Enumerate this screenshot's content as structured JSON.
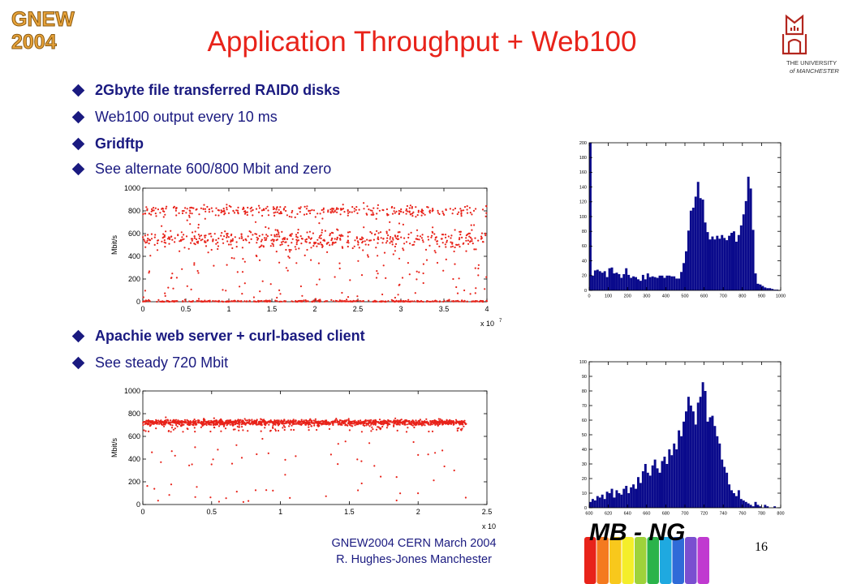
{
  "conference_logo": {
    "line1": "GNEW",
    "line2": "2004",
    "color": "#e8a33a"
  },
  "slide": {
    "title": "Application Throughput + Web100",
    "title_color": "#e8231a",
    "text_color": "#1a1a80",
    "number": "16"
  },
  "bullets_top": [
    {
      "text": "2Gbyte file transferred RAID0 disks",
      "bold": true
    },
    {
      "text": "Web100 output every 10 ms",
      "bold": false
    },
    {
      "text": "Gridftp",
      "bold": true
    },
    {
      "text": "See alternate 600/800 Mbit and zero",
      "bold": false
    }
  ],
  "bullets_bottom": [
    {
      "text": "Apachie web server + curl-based client",
      "bold": true
    },
    {
      "text": "See steady 720 Mbit",
      "bold": false
    }
  ],
  "footer": {
    "line1": "GNEW2004 CERN March 2004",
    "line2": "R. Hughes-Jones  Manchester"
  },
  "university_logo": {
    "line1": "THE UNIVERSITY",
    "line2": "of MANCHESTER",
    "color": "#b3261e"
  },
  "mbng_logo": {
    "text": "MB - NG",
    "stripe_colors": [
      "#e8231a",
      "#f47a1f",
      "#f8c81c",
      "#f4ee2a",
      "#9ed23a",
      "#2bb34a",
      "#1fa9e0",
      "#2f6bd8",
      "#7a4fd0",
      "#c03ad0"
    ]
  },
  "chart_data": [
    {
      "type": "scatter",
      "title": "",
      "xlabel": "",
      "ylabel": "Mbit/s",
      "xlim": [
        0,
        4
      ],
      "ylim": [
        0,
        1000
      ],
      "x_multiplier": "x 10^7",
      "xticks": [
        "0",
        "0.5",
        "1",
        "1.5",
        "2",
        "2.5",
        "3",
        "3.5",
        "4"
      ],
      "yticks": [
        "0",
        "200",
        "400",
        "600",
        "800",
        "1000"
      ],
      "color": "#e8231a",
      "description_values": {
        "bands": [
          0,
          550,
          800
        ],
        "band_weights": [
          0.3,
          0.45,
          0.25
        ],
        "uniform_fraction": 0.25,
        "n_points": 1300
      }
    },
    {
      "type": "scatter",
      "title": "",
      "xlabel": "",
      "ylabel": "Mbit/s",
      "xlim": [
        0,
        2.5
      ],
      "ylim": [
        0,
        1000
      ],
      "x_multiplier": "x 10^7",
      "xticks": [
        "0",
        "0.5",
        "1",
        "1.5",
        "2",
        "2.5"
      ],
      "yticks": [
        "0",
        "200",
        "400",
        "600",
        "800",
        "1000"
      ],
      "color": "#e8231a",
      "description_values": {
        "band": 720,
        "x_end": 2.35,
        "n_points": 1500
      }
    },
    {
      "type": "bar",
      "title": "",
      "xlabel": "",
      "ylabel": "",
      "xlim": [
        0,
        1000
      ],
      "ylim": [
        0,
        200
      ],
      "xticks": [
        "0",
        "100",
        "200",
        "300",
        "400",
        "500",
        "600",
        "700",
        "800",
        "900",
        "1000"
      ],
      "yticks": [
        "0",
        "20",
        "40",
        "60",
        "80",
        "100",
        "120",
        "140",
        "160",
        "180",
        "200"
      ],
      "color": "#0a0a8c",
      "bin_width": 12.5,
      "x_start": 0,
      "values": [
        200,
        20,
        27,
        28,
        26,
        24,
        26,
        18,
        30,
        31,
        23,
        24,
        22,
        17,
        22,
        30,
        21,
        17,
        19,
        18,
        15,
        13,
        21,
        15,
        23,
        18,
        19,
        18,
        17,
        20,
        20,
        17,
        20,
        20,
        19,
        19,
        16,
        16,
        25,
        37,
        53,
        81,
        108,
        112,
        127,
        147,
        125,
        123,
        92,
        79,
        69,
        73,
        69,
        74,
        70,
        75,
        71,
        68,
        74,
        78,
        80,
        66,
        75,
        88,
        103,
        121,
        154,
        138,
        82,
        23,
        9,
        8,
        6,
        4,
        3,
        3,
        2,
        1,
        1,
        0
      ]
    },
    {
      "type": "bar",
      "title": "",
      "xlabel": "",
      "ylabel": "",
      "xlim": [
        600,
        800
      ],
      "ylim": [
        0,
        100
      ],
      "xticks": [
        "600",
        "620",
        "640",
        "660",
        "680",
        "700",
        "720",
        "740",
        "760",
        "780",
        "800"
      ],
      "yticks": [
        "0",
        "10",
        "20",
        "30",
        "40",
        "50",
        "60",
        "70",
        "80",
        "90",
        "100"
      ],
      "color": "#0a0a8c",
      "bin_width": 2.5,
      "x_start": 600,
      "values": [
        4,
        6,
        5,
        8,
        7,
        9,
        6,
        11,
        10,
        13,
        7,
        12,
        10,
        9,
        13,
        15,
        10,
        14,
        16,
        13,
        21,
        17,
        25,
        30,
        24,
        22,
        29,
        33,
        27,
        24,
        32,
        35,
        30,
        40,
        36,
        44,
        40,
        53,
        49,
        59,
        66,
        76,
        70,
        66,
        57,
        72,
        76,
        86,
        80,
        59,
        62,
        63,
        56,
        49,
        44,
        33,
        28,
        24,
        16,
        12,
        10,
        8,
        12,
        6,
        5,
        4,
        3,
        2,
        1,
        4,
        2,
        1,
        0,
        2,
        1,
        0,
        0,
        1,
        0,
        0
      ]
    }
  ]
}
